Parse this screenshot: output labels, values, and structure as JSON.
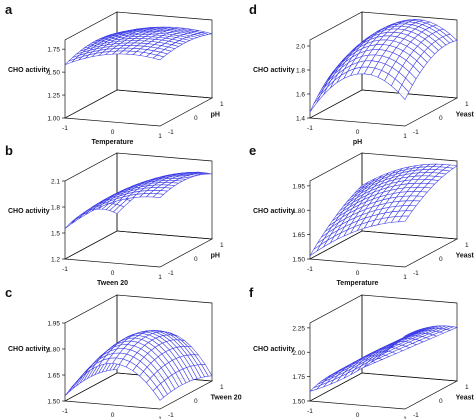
{
  "figure": {
    "mesh_color": "#3b3be6",
    "frame_color": "#111111"
  },
  "chart_data": [
    {
      "id": "a",
      "type": "surface",
      "panel_label": "a",
      "zlabel": "CHO activity",
      "xlabel": "Temperature",
      "ylabel": "pH",
      "zticks": [
        "1.00",
        "1.25",
        "1.50",
        "1.75"
      ],
      "zlim": [
        1.0,
        1.85
      ],
      "xticks": [
        "-1",
        "0",
        "1"
      ],
      "yticks": [
        "-1",
        "0",
        "1"
      ],
      "x": [
        -1,
        0,
        1
      ],
      "y": [
        -1,
        0,
        1
      ],
      "z": [
        [
          1.58,
          1.74,
          1.72
        ],
        [
          1.66,
          1.78,
          1.76
        ],
        [
          1.62,
          1.73,
          1.7
        ]
      ]
    },
    {
      "id": "b",
      "type": "surface",
      "panel_label": "b",
      "zlabel": "CHO activity",
      "xlabel": "Tween 20",
      "ylabel": "pH",
      "zticks": [
        "1.2",
        "1.5",
        "1.8",
        "2.1"
      ],
      "zlim": [
        1.2,
        2.1
      ],
      "xticks": [
        "-1",
        "0",
        "1"
      ],
      "yticks": [
        "-1",
        "0",
        "1"
      ],
      "x": [
        -1,
        0,
        1
      ],
      "y": [
        -1,
        0,
        1
      ],
      "z": [
        [
          1.55,
          1.9,
          2.0
        ],
        [
          1.6,
          1.95,
          2.05
        ],
        [
          1.4,
          1.85,
          1.95
        ]
      ]
    },
    {
      "id": "c",
      "type": "surface",
      "panel_label": "c",
      "zlabel": "CHO activity",
      "xlabel": "Temperature",
      "ylabel": "Tween 20",
      "zticks": [
        "1.50",
        "1.65",
        "1.80",
        "1.95"
      ],
      "zlim": [
        1.5,
        1.95
      ],
      "xticks": [
        "-1",
        "0",
        "1"
      ],
      "yticks": [
        "-1",
        "0",
        "1"
      ],
      "x": [
        -1,
        0,
        1
      ],
      "y": [
        -1,
        0,
        1
      ],
      "z": [
        [
          1.53,
          1.74,
          1.55
        ],
        [
          1.56,
          1.82,
          1.57
        ],
        [
          1.52,
          1.76,
          1.53
        ]
      ]
    },
    {
      "id": "d",
      "type": "surface",
      "panel_label": "d",
      "zlabel": "CHO activity",
      "xlabel": "pH",
      "ylabel": "Yeast extract",
      "zticks": [
        "1.4",
        "1.6",
        "1.8",
        "2.0"
      ],
      "zlim": [
        1.4,
        2.05
      ],
      "xticks": [
        "-1",
        "0",
        "1"
      ],
      "yticks": [
        "-1",
        "0",
        "1"
      ],
      "x": [
        -1,
        0,
        1
      ],
      "y": [
        -1,
        0,
        1
      ],
      "z": [
        [
          1.45,
          1.8,
          1.62
        ],
        [
          1.7,
          2.0,
          1.85
        ],
        [
          1.72,
          2.02,
          1.88
        ]
      ]
    },
    {
      "id": "e",
      "type": "surface",
      "panel_label": "e",
      "zlabel": "CHO activity",
      "xlabel": "Temperature",
      "ylabel": "Yeast extract",
      "zticks": [
        "1.50",
        "1.65",
        "1.80",
        "1.95"
      ],
      "zlim": [
        1.5,
        1.98
      ],
      "xticks": [
        "-1",
        "0",
        "1"
      ],
      "yticks": [
        "-1",
        "0",
        "1"
      ],
      "x": [
        -1,
        0,
        1
      ],
      "y": [
        -1,
        0,
        1
      ],
      "z": [
        [
          1.52,
          1.7,
          1.78
        ],
        [
          1.68,
          1.85,
          1.9
        ],
        [
          1.78,
          1.92,
          1.95
        ]
      ]
    },
    {
      "id": "f",
      "type": "surface",
      "panel_label": "f",
      "zlabel": "CHO activity",
      "xlabel": "Tween 20",
      "ylabel": "Yeast extrac",
      "zticks": [
        "1.50",
        "1.75",
        "2.00",
        "2.25"
      ],
      "zlim": [
        1.5,
        2.3
      ],
      "xticks": [
        "-1",
        "0",
        "1"
      ],
      "yticks": [
        "-1",
        "0",
        "1"
      ],
      "x": [
        -1,
        0,
        1
      ],
      "y": [
        -1,
        0,
        1
      ],
      "z": [
        [
          1.6,
          1.85,
          2.25
        ],
        [
          1.65,
          1.95,
          2.2
        ],
        [
          1.55,
          1.8,
          2.05
        ]
      ]
    }
  ]
}
